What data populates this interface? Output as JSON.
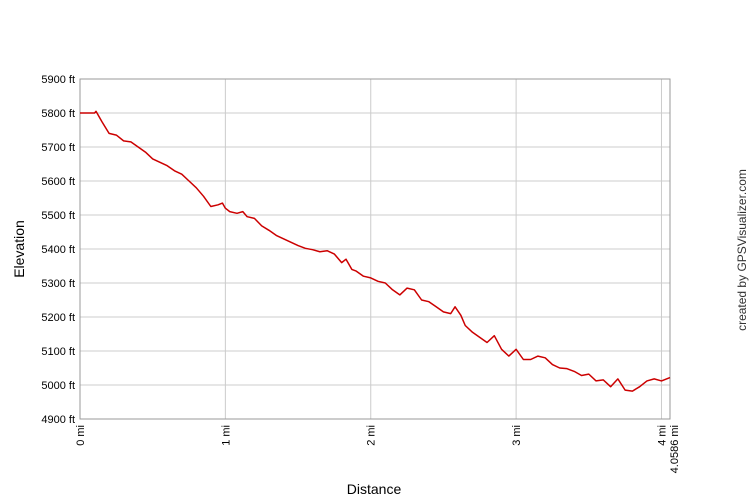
{
  "chart_data": {
    "type": "line",
    "xlabel": "Distance",
    "ylabel": "Elevation",
    "credit": "created by GPSVisualizer.com",
    "xlim": [
      0,
      4.0586
    ],
    "ylim": [
      4900,
      5900
    ],
    "y_ticks": [
      {
        "value": 5900,
        "label": "5900 ft"
      },
      {
        "value": 5800,
        "label": "5800 ft"
      },
      {
        "value": 5700,
        "label": "5700 ft"
      },
      {
        "value": 5600,
        "label": "5600 ft"
      },
      {
        "value": 5500,
        "label": "5500 ft"
      },
      {
        "value": 5400,
        "label": "5400 ft"
      },
      {
        "value": 5300,
        "label": "5300 ft"
      },
      {
        "value": 5200,
        "label": "5200 ft"
      },
      {
        "value": 5100,
        "label": "5100 ft"
      },
      {
        "value": 5000,
        "label": "5000 ft"
      },
      {
        "value": 4900,
        "label": "4900 ft"
      }
    ],
    "x_ticks": [
      {
        "value": 0,
        "label": "0 mi"
      },
      {
        "value": 1,
        "label": "1 mi"
      },
      {
        "value": 2,
        "label": "2 mi"
      },
      {
        "value": 3,
        "label": "3 mi"
      },
      {
        "value": 4,
        "label": "4 mi"
      },
      {
        "value": 4.0586,
        "label": "4.0586 mi"
      }
    ],
    "grid": true,
    "line_color": "#cc0000",
    "series": [
      {
        "x": [
          0,
          0.05,
          0.1,
          0.11,
          0.15,
          0.2,
          0.25,
          0.3,
          0.35,
          0.4,
          0.45,
          0.5,
          0.55,
          0.6,
          0.65,
          0.7,
          0.75,
          0.8,
          0.85,
          0.9,
          0.95,
          0.98,
          1.0,
          1.03,
          1.08,
          1.12,
          1.15,
          1.2,
          1.25,
          1.3,
          1.35,
          1.4,
          1.45,
          1.5,
          1.55,
          1.6,
          1.65,
          1.7,
          1.75,
          1.8,
          1.83,
          1.87,
          1.9,
          1.95,
          2.0,
          2.05,
          2.1,
          2.15,
          2.2,
          2.25,
          2.3,
          2.35,
          2.4,
          2.45,
          2.5,
          2.55,
          2.58,
          2.62,
          2.65,
          2.7,
          2.75,
          2.8,
          2.85,
          2.9,
          2.95,
          3.0,
          3.05,
          3.1,
          3.15,
          3.2,
          3.25,
          3.3,
          3.35,
          3.4,
          3.45,
          3.5,
          3.55,
          3.6,
          3.65,
          3.7,
          3.75,
          3.8,
          3.85,
          3.9,
          3.95,
          4.0,
          4.0586
        ],
        "y": [
          5800,
          5800,
          5800,
          5805,
          5775,
          5740,
          5735,
          5718,
          5715,
          5700,
          5685,
          5665,
          5655,
          5645,
          5630,
          5620,
          5600,
          5580,
          5555,
          5525,
          5530,
          5535,
          5520,
          5510,
          5505,
          5510,
          5495,
          5490,
          5468,
          5455,
          5440,
          5430,
          5420,
          5410,
          5402,
          5398,
          5392,
          5395,
          5385,
          5360,
          5370,
          5340,
          5335,
          5320,
          5315,
          5305,
          5300,
          5280,
          5265,
          5285,
          5280,
          5250,
          5245,
          5230,
          5215,
          5210,
          5230,
          5205,
          5175,
          5155,
          5140,
          5125,
          5145,
          5105,
          5085,
          5105,
          5075,
          5075,
          5085,
          5080,
          5060,
          5050,
          5048,
          5040,
          5028,
          5032,
          5012,
          5015,
          4995,
          5018,
          4985,
          4982,
          4995,
          5012,
          5018,
          5012,
          5022
        ]
      }
    ]
  }
}
